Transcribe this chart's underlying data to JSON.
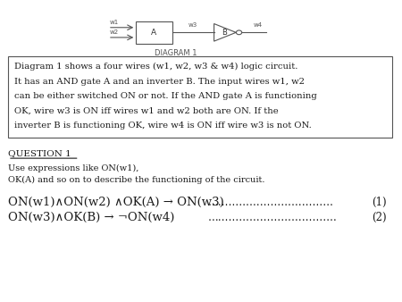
{
  "bg_color": "#ffffff",
  "diagram": {
    "w1_label": "w1",
    "w2_label": "w2",
    "w3_label": "w3",
    "w4_label": "w4",
    "diagram_label": "DIAGRAM 1"
  },
  "text_box": {
    "lines": [
      "Diagram 1 shows a four wires (w1, w2, w3 & w4) logic circuit.",
      "It has an AND gate A and an inverter B. The input wires w1, w2",
      "can be either switched ON or not. If the AND gate A is functioning",
      "OK, wire w3 is ON iff wires w1 and w2 both are ON. If the",
      "inverter B is functioning OK, wire w4 is ON iff wire w3 is not ON."
    ]
  },
  "question": {
    "title": "QUESTION 1",
    "subtitle1": "Use expressions like ON(w1),",
    "subtitle2": "OK(A) and so on to describe the functioning of the circuit.",
    "formula1_left": "ON(w1)∧ON(w2) ∧OK(A) → ON(w3)",
    "formula1_dots": "………………………………",
    "formula1_num": "(1)",
    "formula2_left": "ON(w3)∧OK(B) → ¬ON(w4)",
    "formula2_dots": "……………………………….",
    "formula2_num": "(2)"
  }
}
